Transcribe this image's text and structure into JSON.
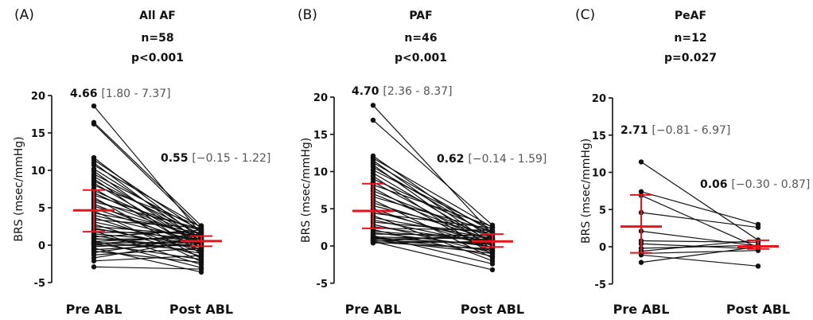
{
  "chart_data": [
    {
      "type": "scatter",
      "panel_label": "(A)",
      "title": "All AF",
      "n_text": "n=58",
      "p_text": "p<0.001",
      "ylabel": "BRS (msec/mmHg)",
      "categories": [
        "Pre ABL",
        "Post ABL"
      ],
      "ylim": [
        -5,
        20
      ],
      "yticks": [
        "20",
        "15",
        "10",
        "5",
        "0",
        "-5"
      ],
      "summary": [
        {
          "median": 4.66,
          "median_text": "4.66",
          "iqr_text": "[1.80 - 7.37]",
          "q1": 1.8,
          "q3": 7.37
        },
        {
          "median": 0.55,
          "median_text": "0.55",
          "iqr_text": "[−0.15 - 1.22]",
          "q1": -0.15,
          "q3": 1.22
        }
      ],
      "summary_color": "#e8141c",
      "pairs": [
        [
          18.6,
          1.5
        ],
        [
          16.4,
          2.6
        ],
        [
          16.2,
          2.2
        ],
        [
          11.7,
          0.8
        ],
        [
          11.4,
          1.8
        ],
        [
          11.0,
          0.3
        ],
        [
          10.7,
          2.4
        ],
        [
          10.2,
          1.2
        ],
        [
          9.9,
          -0.4
        ],
        [
          9.5,
          2.0
        ],
        [
          9.2,
          0.6
        ],
        [
          8.9,
          -1.2
        ],
        [
          8.6,
          1.4
        ],
        [
          8.3,
          0.0
        ],
        [
          8.0,
          2.5
        ],
        [
          7.6,
          -0.8
        ],
        [
          7.3,
          1.0
        ],
        [
          7.0,
          0.4
        ],
        [
          6.7,
          1.9
        ],
        [
          6.4,
          -1.8
        ],
        [
          6.1,
          0.7
        ],
        [
          5.8,
          2.2
        ],
        [
          5.5,
          -0.3
        ],
        [
          5.2,
          1.1
        ],
        [
          4.9,
          0.2
        ],
        [
          4.6,
          -2.2
        ],
        [
          4.3,
          1.6
        ],
        [
          4.0,
          0.5
        ],
        [
          3.7,
          -0.9
        ],
        [
          3.4,
          2.3
        ],
        [
          3.1,
          0.1
        ],
        [
          2.8,
          -1.5
        ],
        [
          2.5,
          1.3
        ],
        [
          2.3,
          -0.5
        ],
        [
          2.1,
          0.8
        ],
        [
          1.9,
          -2.6
        ],
        [
          1.7,
          1.7
        ],
        [
          1.5,
          0.3
        ],
        [
          1.3,
          -1.1
        ],
        [
          1.1,
          2.0
        ],
        [
          0.9,
          -0.2
        ],
        [
          0.8,
          0.9
        ],
        [
          0.6,
          -3.0
        ],
        [
          0.5,
          1.2
        ],
        [
          0.4,
          -0.7
        ],
        [
          0.3,
          0.4
        ],
        [
          0.2,
          -1.9
        ],
        [
          0.1,
          1.5
        ],
        [
          0.0,
          -0.1
        ],
        [
          -0.2,
          0.6
        ],
        [
          -0.4,
          -3.6
        ],
        [
          -0.6,
          0.2
        ],
        [
          -0.8,
          -2.3
        ],
        [
          -1.0,
          1.0
        ],
        [
          -1.3,
          -0.4
        ],
        [
          -1.7,
          0.7
        ],
        [
          -2.1,
          -1.4
        ],
        [
          -2.9,
          -3.2
        ]
      ]
    },
    {
      "type": "scatter",
      "panel_label": "(B)",
      "title": "PAF",
      "n_text": "n=46",
      "p_text": "p<0.001",
      "ylabel": "BRS (msec/mmHg)",
      "categories": [
        "Pre ABL",
        "Post ABL"
      ],
      "ylim": [
        -5,
        20
      ],
      "yticks": [
        "20",
        "15",
        "10",
        "5",
        "0",
        "-5"
      ],
      "summary": [
        {
          "median": 4.7,
          "median_text": "4.70",
          "iqr_text": "[2.36 - 8.37]",
          "q1": 2.36,
          "q3": 8.37
        },
        {
          "median": 0.62,
          "median_text": "0.62",
          "iqr_text": "[−0.14 - 1.59]",
          "q1": -0.14,
          "q3": 1.59
        }
      ],
      "summary_color": "#e8141c",
      "pairs": [
        [
          18.9,
          1.6
        ],
        [
          16.9,
          2.8
        ],
        [
          12.1,
          0.9
        ],
        [
          11.8,
          2.5
        ],
        [
          11.5,
          0.2
        ],
        [
          11.2,
          1.9
        ],
        [
          10.9,
          -0.5
        ],
        [
          10.6,
          1.3
        ],
        [
          10.2,
          2.2
        ],
        [
          9.8,
          0.4
        ],
        [
          9.4,
          -1.2
        ],
        [
          9.0,
          1.7
        ],
        [
          8.6,
          0.0
        ],
        [
          8.2,
          2.6
        ],
        [
          7.8,
          -0.8
        ],
        [
          7.4,
          1.1
        ],
        [
          7.0,
          0.6
        ],
        [
          6.6,
          2.0
        ],
        [
          6.2,
          -1.6
        ],
        [
          5.8,
          0.8
        ],
        [
          5.4,
          1.5
        ],
        [
          5.0,
          -0.3
        ],
        [
          4.7,
          0.3
        ],
        [
          4.4,
          2.4
        ],
        [
          4.1,
          -2.0
        ],
        [
          3.8,
          1.0
        ],
        [
          3.5,
          0.1
        ],
        [
          3.2,
          1.8
        ],
        [
          2.9,
          -0.9
        ],
        [
          2.6,
          0.5
        ],
        [
          2.4,
          2.1
        ],
        [
          2.2,
          -1.4
        ],
        [
          2.0,
          0.7
        ],
        [
          1.8,
          -0.1
        ],
        [
          1.6,
          1.4
        ],
        [
          1.4,
          -2.4
        ],
        [
          1.2,
          0.9
        ],
        [
          1.1,
          0.2
        ],
        [
          1.0,
          -0.6
        ],
        [
          0.9,
          1.2
        ],
        [
          0.8,
          -1.0
        ],
        [
          0.7,
          0.4
        ],
        [
          0.6,
          -3.2
        ],
        [
          0.6,
          1.6
        ],
        [
          0.5,
          -0.4
        ],
        [
          0.4,
          0.6
        ]
      ]
    },
    {
      "type": "scatter",
      "panel_label": "(C)",
      "title": "PeAF",
      "n_text": "n=12",
      "p_text": "p=0.027",
      "ylabel": "BRS (msec/mmHg)",
      "categories": [
        "Pre ABL",
        "Post ABL"
      ],
      "ylim": [
        -5,
        20
      ],
      "yticks": [
        "20",
        "15",
        "10",
        "5",
        "0",
        "-5"
      ],
      "summary": [
        {
          "median": 2.71,
          "median_text": "2.71",
          "iqr_text": "[−0.81 - 6.97]",
          "q1": -0.81,
          "q3": 6.97
        },
        {
          "median": 0.06,
          "median_text": "0.06",
          "iqr_text": "[−0.30 - 0.87]",
          "q1": -0.3,
          "q3": 0.87
        }
      ],
      "summary_color": "#e8141c",
      "pairs": [
        [
          11.4,
          0.9
        ],
        [
          7.4,
          3.0
        ],
        [
          6.9,
          -0.1
        ],
        [
          4.6,
          2.6
        ],
        [
          2.1,
          0.1
        ],
        [
          0.8,
          0.6
        ],
        [
          0.4,
          -0.3
        ],
        [
          -0.2,
          0.2
        ],
        [
          -0.6,
          0.9
        ],
        [
          -0.9,
          -0.5
        ],
        [
          -1.1,
          -2.6
        ],
        [
          -2.1,
          0.0
        ]
      ]
    }
  ]
}
